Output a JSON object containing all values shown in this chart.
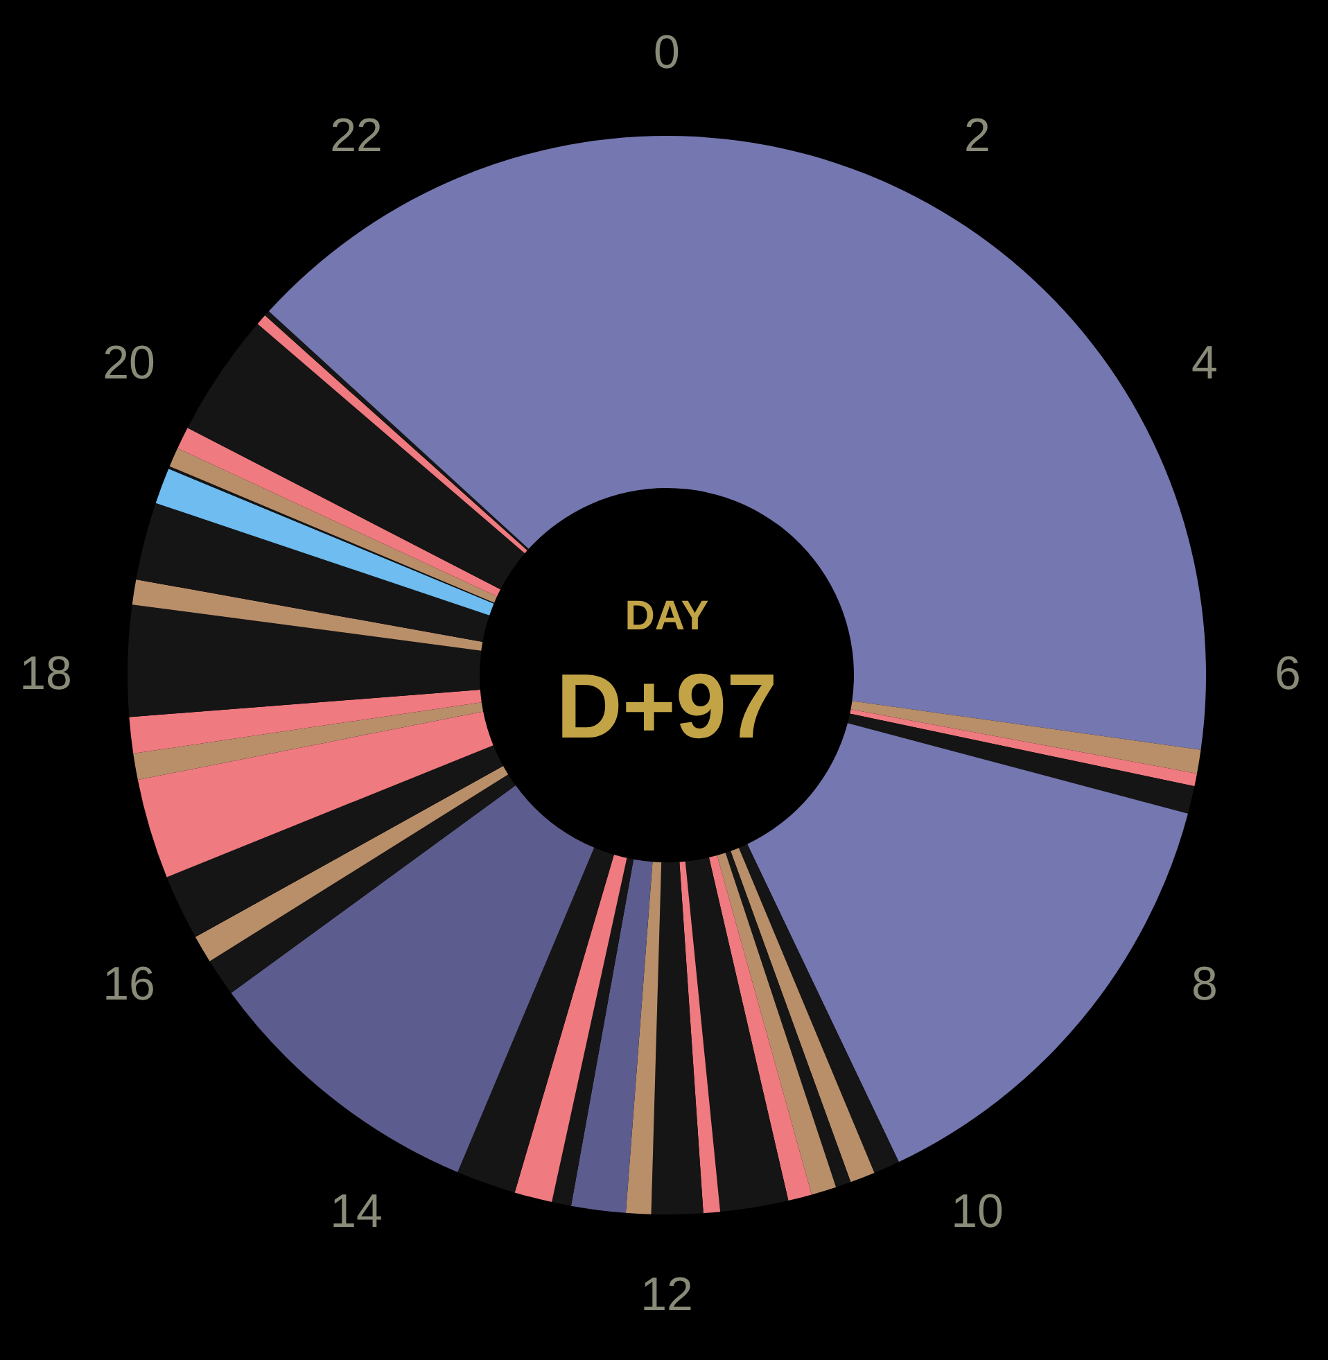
{
  "chart_data": {
    "type": "donut",
    "categories": [
      null,
      null,
      null,
      null,
      null,
      null,
      null,
      null,
      null,
      null,
      null,
      null,
      null,
      null,
      null,
      null,
      null,
      null,
      null,
      null,
      null,
      null,
      null,
      null,
      null,
      null,
      null,
      null,
      null,
      null,
      null,
      null,
      null,
      null,
      null,
      null
    ],
    "values": [
      27.21,
      0.71,
      0.38,
      0.83,
      13.79,
      0.79,
      0.75,
      0.46,
      0.75,
      0.71,
      2.04,
      0.5,
      1.54,
      0.75,
      1.63,
      0.58,
      1.13,
      1.79,
      8.63,
      1.13,
      0.83,
      1.96,
      3.0,
      0.79,
      1.08,
      3.33,
      0.75,
      2.33,
      1.08,
      0.08,
      0.58,
      0.67,
      3.71,
      0.33,
      0.17,
      13.21
    ],
    "colors": [
      "#7577b0",
      "#b98f6a",
      "#ef7a80",
      "#151515",
      "#7577b0",
      "#151515",
      "#b98f6a",
      "#151515",
      "#b98f6a",
      "#ef7a80",
      "#151515",
      "#ef7a80",
      "#151515",
      "#b98f6a",
      "#5d5c8e",
      "#151515",
      "#ef7a80",
      "#151515",
      "#5d5c8e",
      "#151515",
      "#b98f6a",
      "#151515",
      "#ef7a80",
      "#b98f6a",
      "#ef7a80",
      "#151515",
      "#b98f6a",
      "#151515",
      "#6ebcf0",
      "#151515",
      "#b98f6a",
      "#ef7a80",
      "#151515",
      "#ef7a80",
      "#151515",
      "#7577b0"
    ],
    "annotations": [
      "0",
      "2",
      "4",
      "6",
      "8",
      "10",
      "12",
      "14",
      "16",
      "18",
      "20",
      "22",
      "DAY",
      "D+97"
    ],
    "legend": false
  }
}
